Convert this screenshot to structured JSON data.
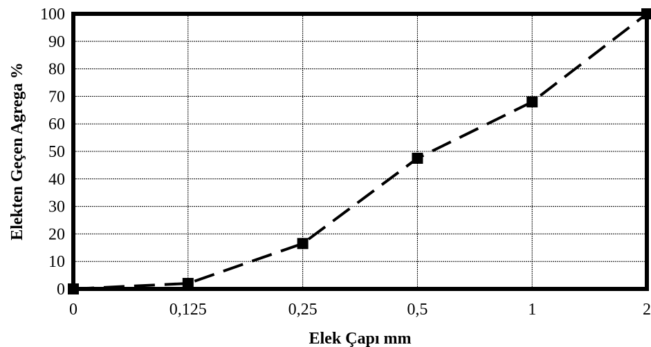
{
  "chart_data": {
    "type": "line",
    "title": "",
    "xlabel": "Elek Çapı mm",
    "ylabel": "Elekten Geçen Agrega %",
    "categories": [
      "0",
      "0,125",
      "0,25",
      "0,5",
      "1",
      "2"
    ],
    "series": [
      {
        "values": [
          0,
          2,
          16.5,
          47.5,
          68,
          100
        ],
        "line_style": "dashed",
        "marker": "square",
        "color": "#000000"
      }
    ],
    "ylim": [
      0,
      100
    ],
    "yticks": [
      "0",
      "10",
      "20",
      "30",
      "40",
      "50",
      "60",
      "70",
      "80",
      "90",
      "100"
    ],
    "grid": true,
    "legend": "none"
  }
}
